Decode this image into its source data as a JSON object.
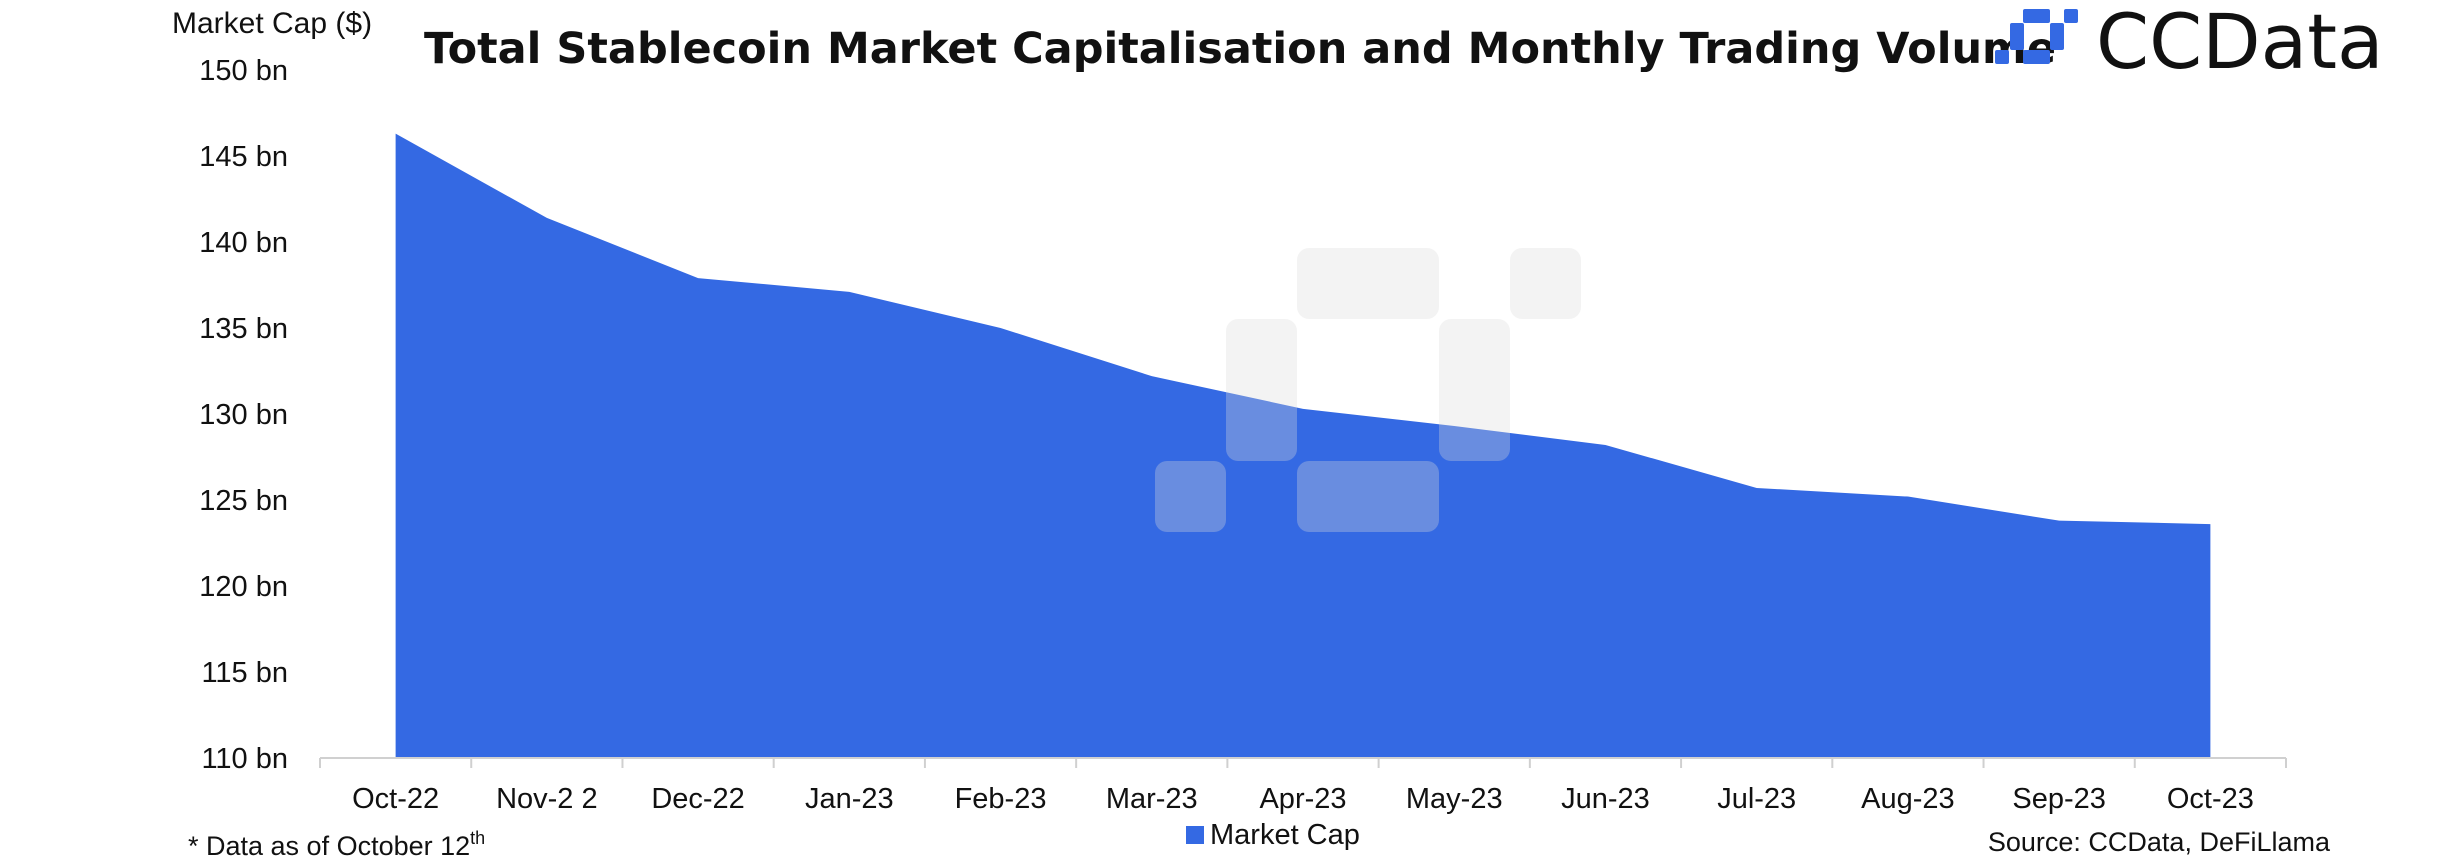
{
  "chart_data": {
    "type": "area",
    "title": "Total Stablecoin Market Capitalisation and Monthly Trading Volume",
    "ylabel": "Market Cap ($)",
    "xlabel": "",
    "categories": [
      "Oct-22",
      "Nov-2 2",
      "Dec-22",
      "Jan-23",
      "Feb-23",
      "Mar-23",
      "Apr-23",
      "May-23",
      "Jun-23",
      "Jul-23",
      "Aug-23",
      "Sep-23",
      "Oct-23"
    ],
    "series": [
      {
        "name": "Market Cap",
        "color": "#3469E3",
        "values": [
          146.3,
          141.4,
          137.9,
          137.1,
          135.0,
          132.2,
          130.3,
          129.3,
          128.2,
          125.7,
          125.2,
          123.8,
          123.6
        ]
      }
    ],
    "ylim": [
      110,
      150
    ],
    "yticks": [
      110,
      115,
      120,
      125,
      130,
      135,
      140,
      145,
      150
    ],
    "ytick_suffix": " bn",
    "grid": false,
    "legend_position": "bottom-center"
  },
  "brand": {
    "name": "CCData",
    "color": "#3469E3"
  },
  "footnote": {
    "text": "* Data as of October 12",
    "sup": "th"
  },
  "source": "Source: CCData, DeFiLlama"
}
